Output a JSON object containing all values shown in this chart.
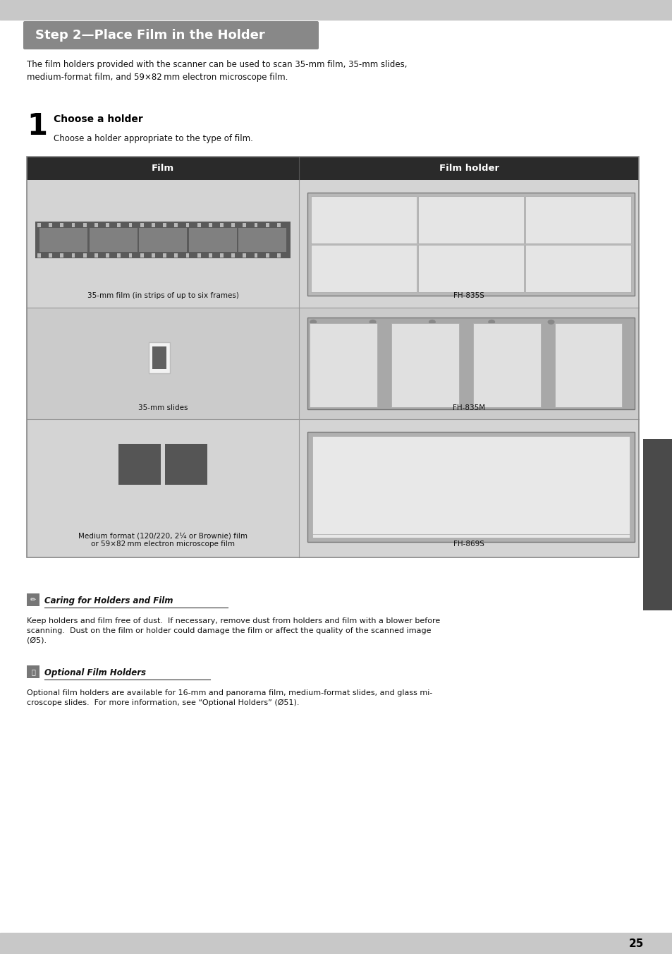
{
  "bg_color": "#ffffff",
  "page_width": 9.54,
  "page_height": 13.52,
  "title_text": "Step 2—Place Film in the Holder",
  "intro_text": "The film holders provided with the scanner can be used to scan 35‑mm film, 35‑mm slides,\nmedium‑format film, and 59×82 mm electron microscope film.",
  "step_number": "1",
  "step_title": "Choose a holder",
  "step_body": "Choose a holder appropriate to the type of film.",
  "table_header_bg": "#2a2a2a",
  "table_col1_header": "Film",
  "table_col2_header": "Film holder",
  "row1_film_label": "35‑mm film (in strips of up to six frames)",
  "row1_holder_label": "FH‑835S",
  "row2_film_label": "35‑mm slides",
  "row2_holder_label": "FH‑835M",
  "row3_film_label": "Medium format (120/220, 2¼ or Brownie) film\nor 59×82 mm electron microscope film",
  "row3_holder_label": "FH‑869S",
  "note1_title": "Caring for Holders and Film",
  "note1_body": "Keep holders and film free of dust.  If necessary, remove dust from holders and film with a blower before\nscanning.  Dust on the film or holder could damage the film or affect the quality of the scanned image\n(Ø5).",
  "note2_title": "Optional Film Holders",
  "note2_body": "Optional film holders are available for 16‑mm and panorama film, medium‑format slides, and glass mi-\ncroscope slides.  For more information, see “Optional Holders” (Ø51).",
  "page_number": "25"
}
